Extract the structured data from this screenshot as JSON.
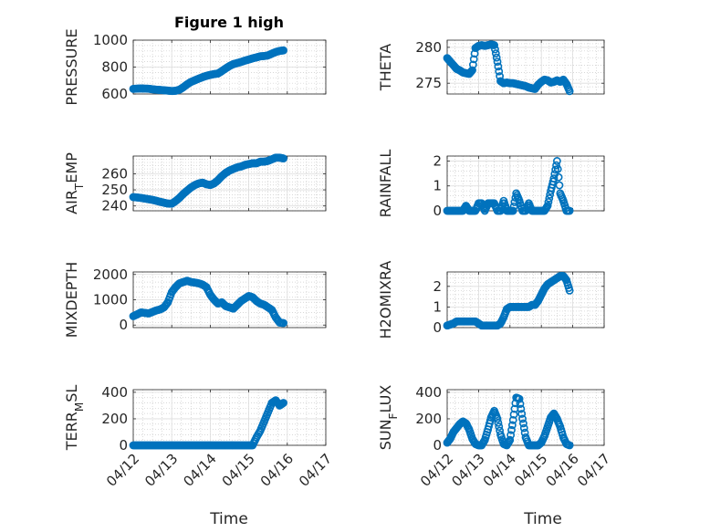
{
  "figure": {
    "title": "Figure 1 high",
    "xlabel": "Time",
    "date_ticks": [
      "04/12",
      "04/13",
      "04/14",
      "04/15",
      "04/16",
      "04/17"
    ],
    "colors": {
      "marker": "#0072BD",
      "axis": "#262626",
      "grid_major": "#dddddd",
      "grid_minor": "#cccccc",
      "background": "#ffffff"
    }
  },
  "chart_data": [
    {
      "type": "scatter",
      "title": "Figure 1 high",
      "ylabel": "PRESSURE",
      "xlabel": "",
      "xlim": [
        "04/12",
        "04/17"
      ],
      "ylim": [
        600,
        1000
      ],
      "yticks": [
        600,
        800,
        1000
      ],
      "grid": "on, minor",
      "x": [
        0,
        0.1,
        0.2,
        0.3,
        0.4,
        0.5,
        0.6,
        0.7,
        0.8,
        0.9,
        1.0,
        1.1,
        1.2,
        1.3,
        1.4,
        1.5,
        1.6,
        1.7,
        1.8,
        1.9,
        2.0,
        2.1,
        2.2,
        2.3,
        2.4,
        2.5,
        2.6,
        2.7,
        2.8,
        2.9,
        3.0,
        3.1,
        3.2,
        3.3,
        3.4,
        3.5,
        3.6,
        3.7,
        3.8,
        3.9
      ],
      "y": [
        638,
        640,
        641,
        640,
        639,
        635,
        632,
        630,
        628,
        625,
        622,
        624,
        632,
        650,
        672,
        690,
        702,
        714,
        725,
        735,
        742,
        748,
        752,
        770,
        790,
        808,
        822,
        830,
        838,
        848,
        856,
        865,
        872,
        880,
        882,
        887,
        900,
        912,
        920,
        924
      ]
    },
    {
      "type": "scatter",
      "ylabel": "THETA",
      "xlabel": "",
      "xlim": [
        "04/12",
        "04/17"
      ],
      "ylim": [
        273.5,
        281
      ],
      "yticks": [
        275,
        280
      ],
      "grid": "on, minor",
      "x": [
        0,
        0.1,
        0.2,
        0.3,
        0.4,
        0.5,
        0.6,
        0.7,
        0.8,
        0.9,
        1.0,
        1.1,
        1.2,
        1.3,
        1.4,
        1.5,
        1.6,
        1.7,
        1.8,
        1.9,
        2.0,
        2.1,
        2.2,
        2.3,
        2.4,
        2.5,
        2.6,
        2.7,
        2.8,
        2.9,
        3.0,
        3.1,
        3.2,
        3.3,
        3.4,
        3.5,
        3.6,
        3.7,
        3.8,
        3.9
      ],
      "y": [
        278.5,
        278.0,
        277.5,
        277.0,
        276.8,
        276.5,
        276.4,
        276.3,
        276.8,
        279.9,
        280.2,
        280.3,
        280.2,
        280.3,
        280.4,
        280.3,
        278.0,
        275.3,
        275.0,
        275.1,
        275.0,
        275.0,
        274.9,
        274.8,
        274.7,
        274.6,
        274.4,
        274.3,
        274.2,
        274.8,
        275.2,
        275.5,
        275.4,
        275.1,
        275.2,
        275.4,
        275.2,
        275.5,
        274.9,
        273.9
      ]
    },
    {
      "type": "scatter",
      "ylabel": "AIR_TEMP",
      "xlabel": "",
      "xlim": [
        "04/12",
        "04/17"
      ],
      "ylim": [
        237,
        271
      ],
      "yticks": [
        240,
        250,
        260
      ],
      "grid": "on, minor",
      "x": [
        0,
        0.1,
        0.2,
        0.3,
        0.4,
        0.5,
        0.6,
        0.7,
        0.8,
        0.9,
        1.0,
        1.1,
        1.2,
        1.3,
        1.4,
        1.5,
        1.6,
        1.7,
        1.8,
        1.9,
        2.0,
        2.1,
        2.2,
        2.3,
        2.4,
        2.5,
        2.6,
        2.7,
        2.8,
        2.9,
        3.0,
        3.1,
        3.2,
        3.3,
        3.4,
        3.5,
        3.6,
        3.7,
        3.8,
        3.9
      ],
      "y": [
        245.5,
        245.3,
        245.0,
        244.6,
        244.2,
        243.8,
        243.2,
        242.6,
        242.0,
        241.5,
        241.4,
        243.0,
        245.0,
        247.5,
        249.5,
        251.5,
        253.0,
        254.0,
        254.5,
        253.5,
        253.0,
        254.0,
        256.0,
        258.5,
        260.5,
        262.0,
        263.0,
        264.0,
        264.5,
        265.5,
        266.0,
        266.5,
        266.5,
        267.5,
        267.5,
        268.0,
        269.0,
        270.0,
        270.0,
        269.5
      ]
    },
    {
      "type": "scatter",
      "ylabel": "RAINFALL",
      "xlabel": "",
      "xlim": [
        "04/12",
        "04/17"
      ],
      "ylim": [
        0,
        2.2
      ],
      "yticks": [
        0,
        1,
        2
      ],
      "grid": "on, minor",
      "x": [
        0,
        0.1,
        0.2,
        0.3,
        0.4,
        0.5,
        0.6,
        0.7,
        0.8,
        0.9,
        1.0,
        1.1,
        1.2,
        1.3,
        1.4,
        1.5,
        1.6,
        1.7,
        1.8,
        1.9,
        2.0,
        2.1,
        2.2,
        2.3,
        2.4,
        2.5,
        2.6,
        2.7,
        2.8,
        2.9,
        3.0,
        3.1,
        3.2,
        3.3,
        3.4,
        3.5,
        3.6,
        3.7,
        3.8,
        3.9
      ],
      "y": [
        0,
        0,
        0,
        0,
        0,
        0,
        0.2,
        0,
        0,
        0,
        0.3,
        0.3,
        0,
        0.3,
        0.3,
        0.3,
        0,
        0,
        0.4,
        0,
        0,
        0,
        0.7,
        0.4,
        0,
        0,
        0.3,
        0,
        0,
        0,
        0,
        0,
        0.2,
        0.8,
        1.3,
        2.0,
        0.7,
        0.4,
        0,
        0
      ]
    },
    {
      "type": "scatter",
      "ylabel": "MIXDEPTH",
      "xlabel": "",
      "xlim": [
        "04/12",
        "04/17"
      ],
      "ylim": [
        -100,
        2100
      ],
      "yticks": [
        0,
        1000,
        2000
      ],
      "grid": "on, minor",
      "x": [
        0,
        0.1,
        0.2,
        0.3,
        0.4,
        0.5,
        0.6,
        0.7,
        0.8,
        0.9,
        1.0,
        1.1,
        1.2,
        1.3,
        1.4,
        1.5,
        1.6,
        1.7,
        1.8,
        1.9,
        2.0,
        2.1,
        2.2,
        2.3,
        2.4,
        2.5,
        2.6,
        2.7,
        2.8,
        2.9,
        3.0,
        3.1,
        3.2,
        3.3,
        3.4,
        3.5,
        3.6,
        3.7,
        3.8,
        3.9
      ],
      "y": [
        350,
        420,
        500,
        480,
        460,
        520,
        580,
        620,
        700,
        900,
        1300,
        1500,
        1650,
        1700,
        1750,
        1700,
        1680,
        1650,
        1600,
        1500,
        1200,
        1000,
        850,
        900,
        750,
        700,
        650,
        800,
        950,
        1050,
        1150,
        1100,
        950,
        850,
        800,
        700,
        600,
        300,
        100,
        80
      ]
    },
    {
      "type": "scatter",
      "ylabel": "H2OMIXRA",
      "xlabel": "",
      "xlim": [
        "04/12",
        "04/17"
      ],
      "ylim": [
        0,
        2.7
      ],
      "yticks": [
        0,
        1,
        2
      ],
      "grid": "on, minor",
      "x": [
        0,
        0.1,
        0.2,
        0.3,
        0.4,
        0.5,
        0.6,
        0.7,
        0.8,
        0.9,
        1.0,
        1.1,
        1.2,
        1.3,
        1.4,
        1.5,
        1.6,
        1.7,
        1.8,
        1.9,
        2.0,
        2.1,
        2.2,
        2.3,
        2.4,
        2.5,
        2.6,
        2.7,
        2.8,
        2.9,
        3.0,
        3.1,
        3.2,
        3.3,
        3.4,
        3.5,
        3.6,
        3.7,
        3.8,
        3.9
      ],
      "y": [
        0.1,
        0.15,
        0.2,
        0.3,
        0.3,
        0.3,
        0.3,
        0.3,
        0.3,
        0.3,
        0.2,
        0.1,
        0.1,
        0.1,
        0.1,
        0.1,
        0.1,
        0.2,
        0.5,
        0.9,
        1.0,
        1.0,
        1.0,
        1.0,
        1.0,
        1.0,
        1.0,
        1.1,
        1.1,
        1.3,
        1.6,
        1.9,
        2.1,
        2.2,
        2.3,
        2.4,
        2.5,
        2.5,
        2.3,
        1.8
      ]
    },
    {
      "type": "scatter",
      "ylabel": "TERR_MSL",
      "xlabel": "Time",
      "xlim": [
        "04/12",
        "04/17"
      ],
      "ylim": [
        0,
        420
      ],
      "yticks": [
        0,
        200,
        400
      ],
      "grid": "on, minor",
      "x": [
        0,
        0.1,
        0.2,
        0.3,
        0.4,
        0.5,
        0.6,
        0.7,
        0.8,
        0.9,
        1.0,
        1.1,
        1.2,
        1.3,
        1.4,
        1.5,
        1.6,
        1.7,
        1.8,
        1.9,
        2.0,
        2.1,
        2.2,
        2.3,
        2.4,
        2.5,
        2.6,
        2.7,
        2.8,
        2.9,
        3.0,
        3.1,
        3.2,
        3.3,
        3.4,
        3.5,
        3.6,
        3.7,
        3.8,
        3.9
      ],
      "y": [
        0,
        0,
        0,
        0,
        0,
        0,
        0,
        0,
        0,
        0,
        0,
        0,
        0,
        0,
        0,
        0,
        0,
        0,
        0,
        0,
        0,
        0,
        0,
        0,
        0,
        0,
        0,
        0,
        0,
        0,
        0,
        0,
        60,
        110,
        180,
        250,
        320,
        340,
        300,
        320
      ]
    },
    {
      "type": "scatter",
      "ylabel": "SUN_FLUX",
      "xlabel": "Time",
      "xlim": [
        "04/12",
        "04/17"
      ],
      "ylim": [
        0,
        420
      ],
      "yticks": [
        0,
        200,
        400
      ],
      "grid": "on, minor",
      "x": [
        0,
        0.1,
        0.2,
        0.3,
        0.4,
        0.5,
        0.6,
        0.7,
        0.8,
        0.9,
        1.0,
        1.1,
        1.2,
        1.3,
        1.4,
        1.5,
        1.6,
        1.7,
        1.8,
        1.9,
        2.0,
        2.1,
        2.2,
        2.3,
        2.4,
        2.5,
        2.6,
        2.7,
        2.8,
        2.9,
        3.0,
        3.1,
        3.2,
        3.3,
        3.4,
        3.5,
        3.6,
        3.7,
        3.8,
        3.9
      ],
      "y": [
        20,
        50,
        100,
        130,
        160,
        180,
        165,
        120,
        50,
        10,
        0,
        0,
        40,
        120,
        210,
        260,
        200,
        80,
        10,
        0,
        40,
        190,
        360,
        350,
        200,
        60,
        0,
        0,
        0,
        0,
        20,
        70,
        140,
        210,
        240,
        200,
        140,
        60,
        10,
        0
      ]
    }
  ]
}
